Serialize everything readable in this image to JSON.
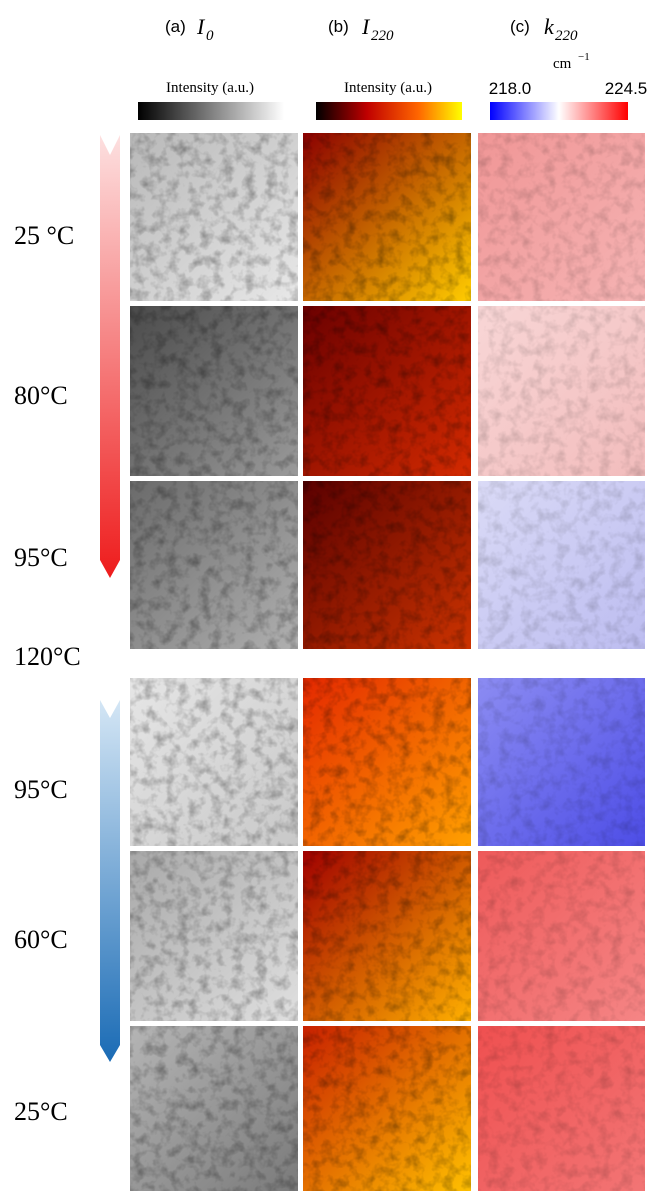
{
  "columns": [
    {
      "label": "(a)",
      "symbol": "I",
      "subscript": "0"
    },
    {
      "label": "(b)",
      "symbol": "I",
      "subscript": "220"
    },
    {
      "label": "(c)",
      "symbol": "k",
      "subscript": "220"
    }
  ],
  "colorbars": {
    "intensity_a": "Intensity (a.u.)",
    "intensity_b": "Intensity (a.u.)",
    "unit": "cm",
    "unit_exponent": "−1",
    "min": "218.0",
    "max": "224.5"
  },
  "rows": [
    "25 °C",
    "80°C",
    "95°C",
    "120°C",
    "95°C",
    "60°C",
    "25°C"
  ]
}
